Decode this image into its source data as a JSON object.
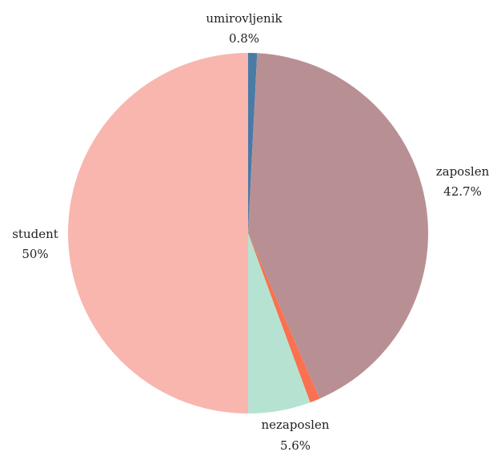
{
  "chart_data": {
    "type": "pie",
    "title": "",
    "slices": [
      {
        "label": "umirovljenik",
        "value": 0.8,
        "value_label": "0.8%",
        "color": "#4a7aa6"
      },
      {
        "label": "zaposlen",
        "value": 42.7,
        "value_label": "42.7%",
        "color": "#b89094"
      },
      {
        "label": "",
        "value": 0.9,
        "value_label": "",
        "color": "#f97150"
      },
      {
        "label": "nezaposlen",
        "value": 5.6,
        "value_label": "5.6%",
        "color": "#b6e3d1"
      },
      {
        "label": "student",
        "value": 50,
        "value_label": "50%",
        "color": "#f8b6ae"
      }
    ]
  }
}
